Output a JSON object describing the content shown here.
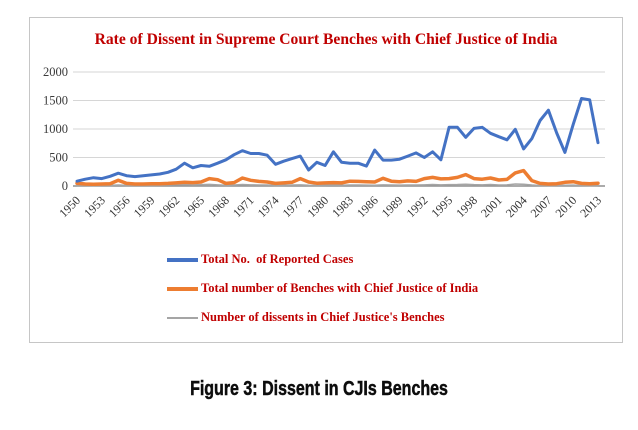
{
  "chart": {
    "title": "Rate of Dissent in Supreme Court Benches with Chief Justice of India"
  },
  "caption": "Figure 3: Dissent in CJIs Benches",
  "chart_data": {
    "type": "line",
    "title": "Rate of Dissent in Supreme Court Benches with Chief Justice of India",
    "title_color": "#c00000",
    "x_start_year": 1950,
    "x_end_year": 2013,
    "x_tick_labels": [
      "1950",
      "1953",
      "1956",
      "1959",
      "1962",
      "1965",
      "1968",
      "1971",
      "1974",
      "1977",
      "1980",
      "1983",
      "1986",
      "1989",
      "1992",
      "1995",
      "1998",
      "2001",
      "2004",
      "2007",
      "2010",
      "2013"
    ],
    "y_ticks": [
      0,
      500,
      1000,
      1500,
      2000
    ],
    "ylim": [
      0,
      2000
    ],
    "grid": true,
    "legend_position": "bottom-left",
    "series": [
      {
        "name": "Total No.  of Reported Cases",
        "color": "#4472C4",
        "values": [
          85,
          120,
          145,
          130,
          170,
          225,
          180,
          165,
          180,
          195,
          210,
          240,
          295,
          400,
          320,
          360,
          345,
          400,
          460,
          550,
          620,
          570,
          570,
          540,
          380,
          435,
          480,
          525,
          280,
          415,
          360,
          600,
          415,
          400,
          400,
          350,
          630,
          455,
          455,
          470,
          525,
          580,
          500,
          600,
          460,
          1030,
          1030,
          855,
          1010,
          1030,
          925,
          865,
          810,
          995,
          650,
          830,
          1150,
          1330,
          930,
          590,
          1080,
          1535,
          1510,
          760
        ]
      },
      {
        "name": "Total number of Benches with Chief Justice of India",
        "color": "#ED7D31",
        "values": [
          50,
          35,
          30,
          35,
          40,
          100,
          45,
          35,
          35,
          40,
          40,
          45,
          55,
          65,
          60,
          70,
          130,
          110,
          45,
          60,
          140,
          100,
          80,
          70,
          45,
          55,
          65,
          130,
          70,
          50,
          55,
          60,
          55,
          85,
          80,
          75,
          70,
          135,
          85,
          75,
          90,
          80,
          130,
          150,
          125,
          130,
          150,
          200,
          130,
          120,
          140,
          105,
          115,
          230,
          270,
          95,
          45,
          35,
          40,
          65,
          75,
          45,
          40,
          50
        ]
      },
      {
        "name": "Number of dissents in Chief Justice's Benches",
        "color": "#A5A5A5",
        "values": [
          10,
          8,
          6,
          8,
          10,
          15,
          10,
          8,
          8,
          10,
          12,
          18,
          22,
          25,
          20,
          22,
          28,
          20,
          12,
          15,
          25,
          20,
          18,
          15,
          10,
          12,
          15,
          20,
          12,
          10,
          12,
          15,
          12,
          18,
          15,
          14,
          12,
          20,
          15,
          14,
          16,
          15,
          20,
          25,
          20,
          22,
          25,
          30,
          22,
          20,
          24,
          18,
          20,
          35,
          30,
          15,
          8,
          6,
          8,
          12,
          14,
          8,
          6,
          10
        ]
      }
    ]
  }
}
